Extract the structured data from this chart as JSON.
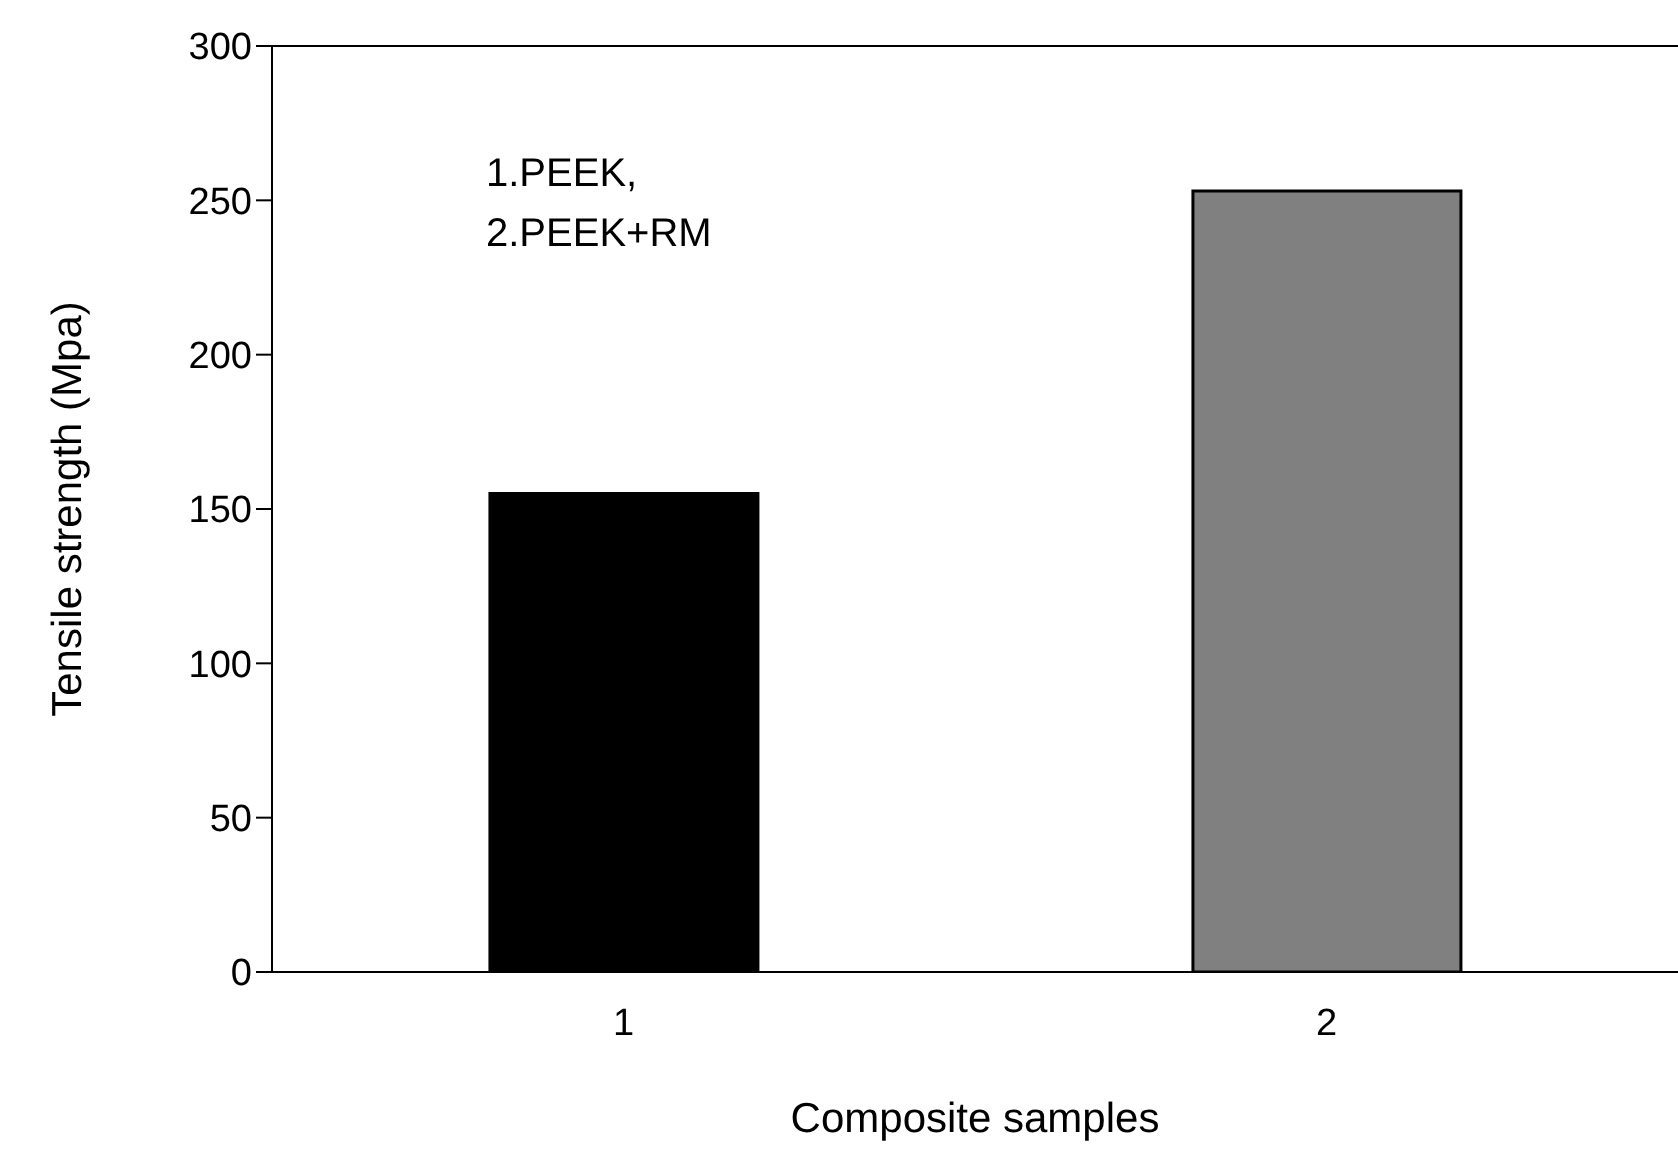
{
  "chart_data": {
    "type": "bar",
    "xlabel": "Composite samples",
    "ylabel": "Tensile strength (Mpa)",
    "categories": [
      "1",
      "2"
    ],
    "values": [
      155,
      253
    ],
    "colors": [
      "#000000",
      "#808080"
    ],
    "ylim": [
      0,
      300
    ],
    "yticks": [
      0,
      50,
      100,
      150,
      200,
      250,
      300
    ],
    "annotations": [
      "1.PEEK,",
      "2.PEEK+RM"
    ]
  }
}
